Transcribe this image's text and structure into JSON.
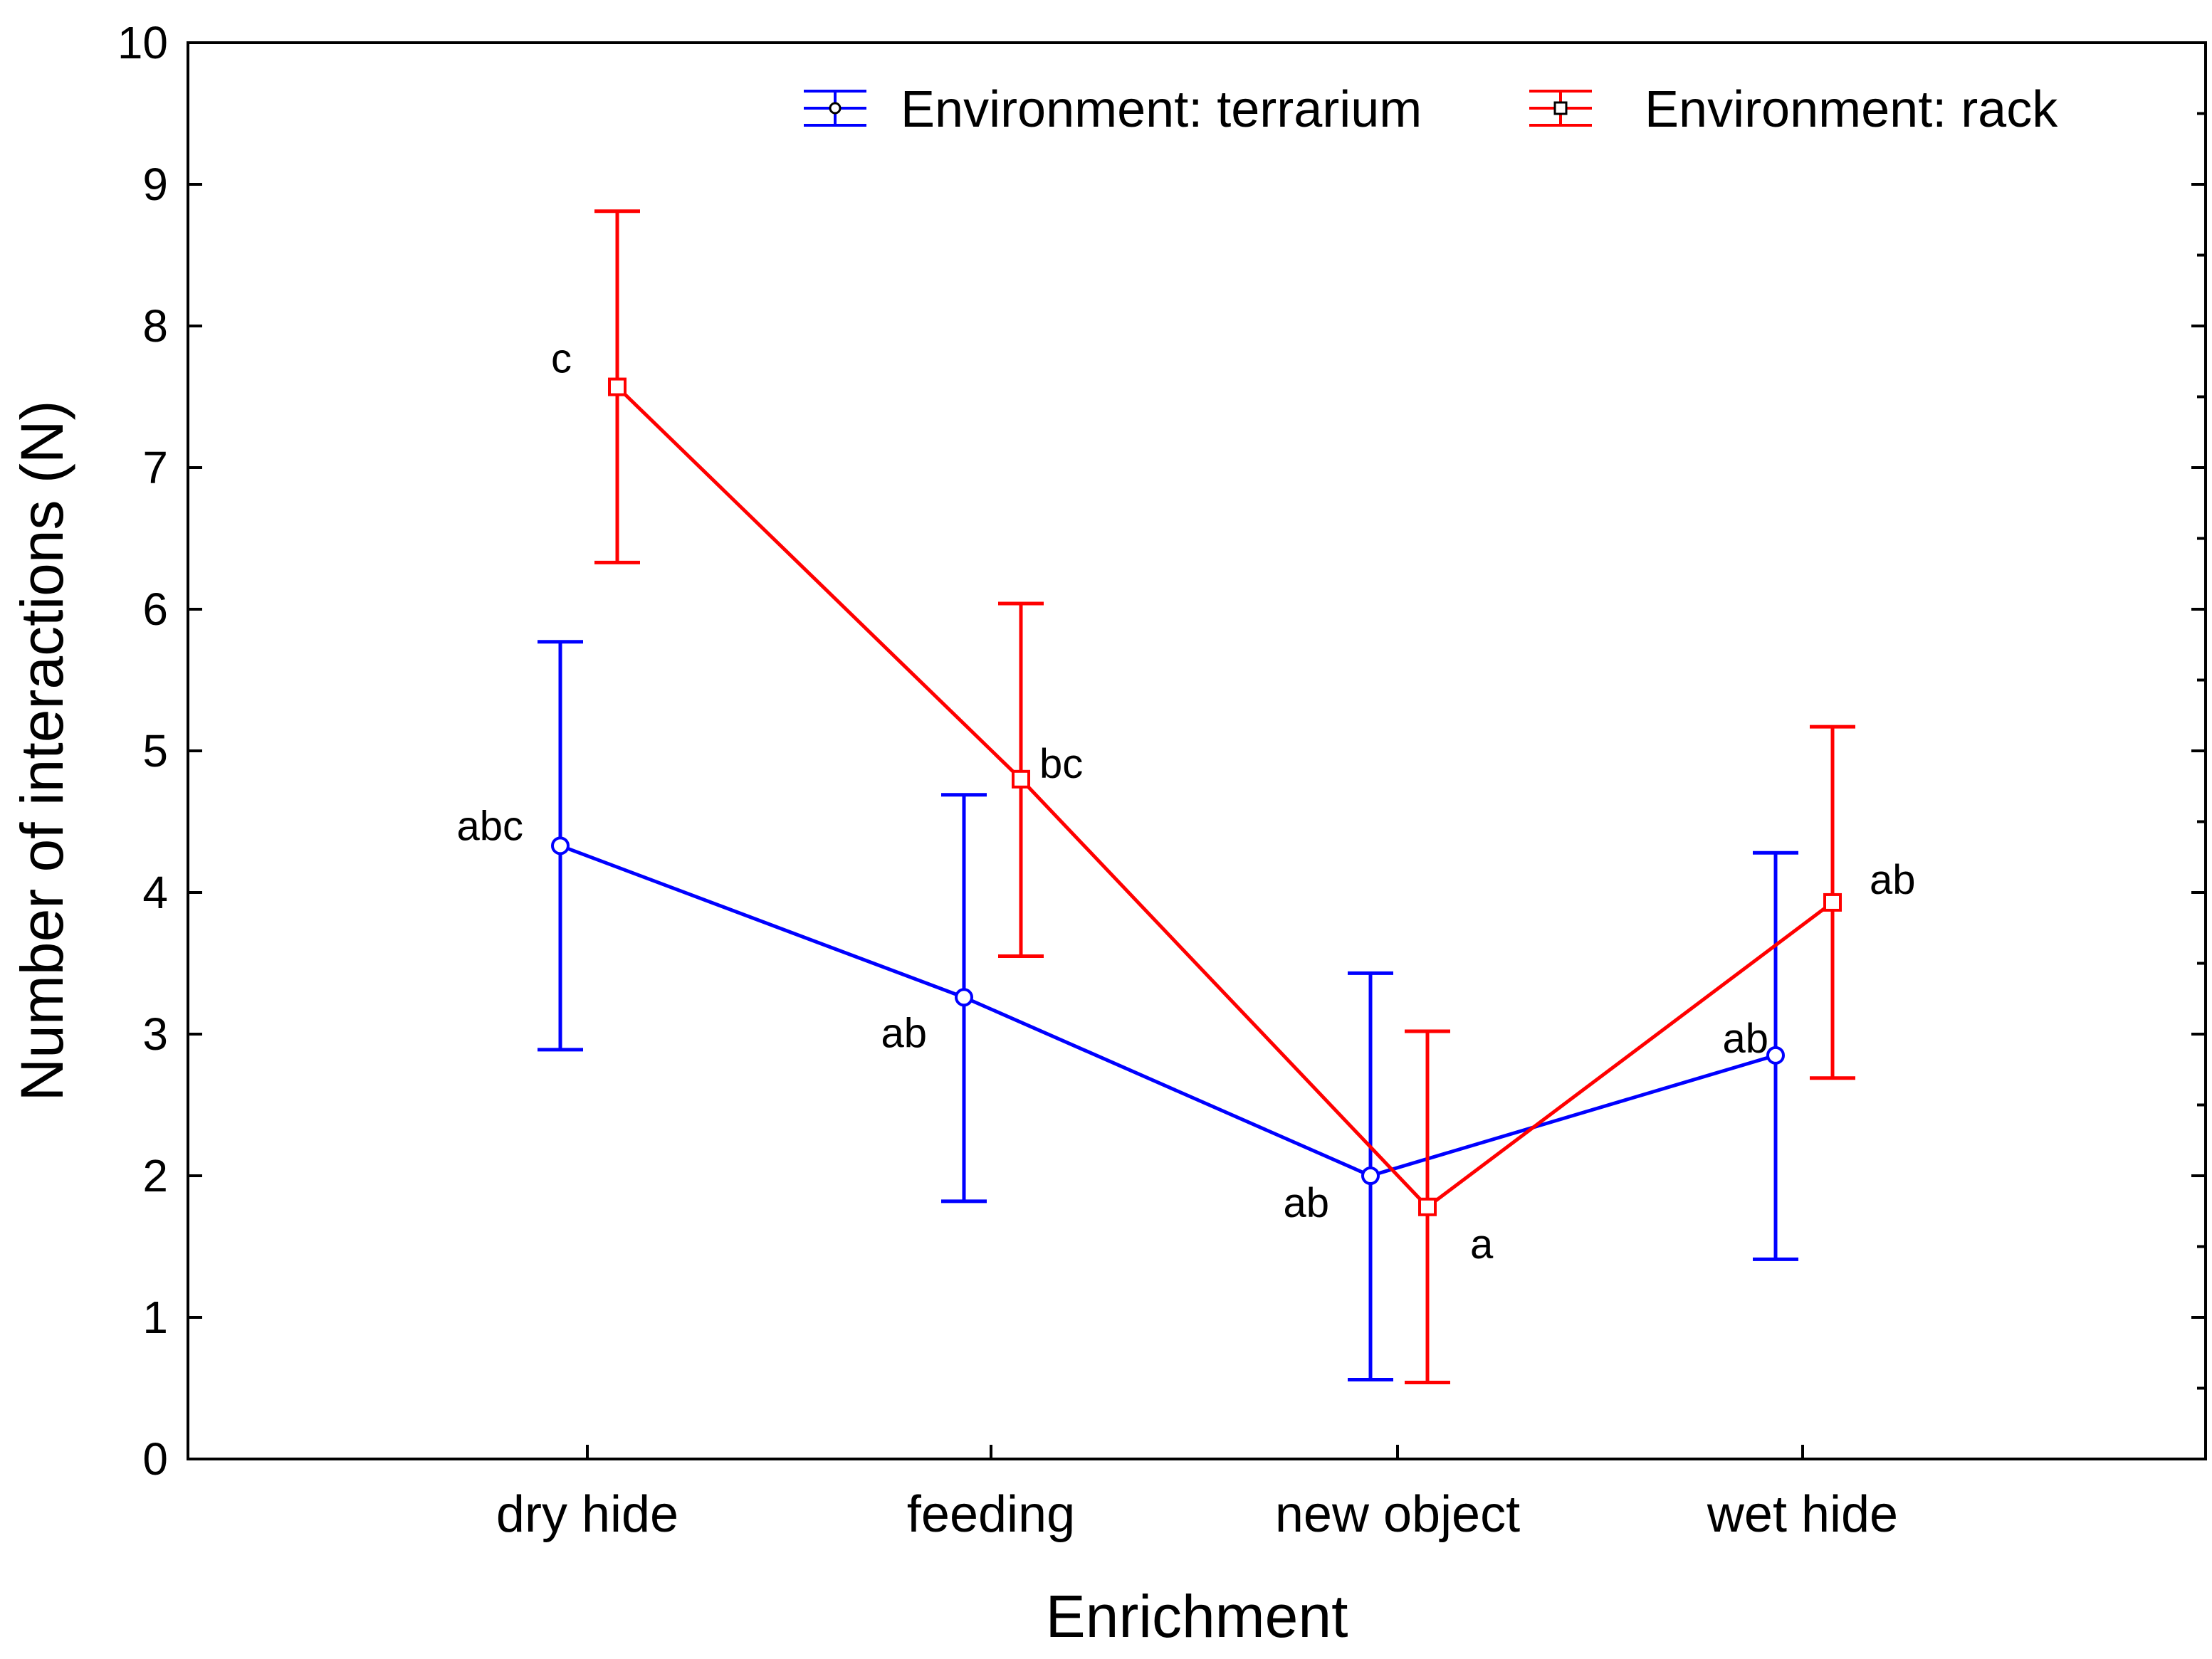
{
  "chart_data": {
    "type": "line",
    "xlabel": "Enrichment",
    "ylabel": "Number of interactions (N)",
    "ylim": [
      0,
      10
    ],
    "yticks": [
      "0",
      "1",
      "2",
      "3",
      "4",
      "5",
      "6",
      "7",
      "8",
      "9",
      "10"
    ],
    "categories": [
      "dry hide",
      "feeding",
      "new object",
      "wet hide"
    ],
    "legend_position": "top-right",
    "grid": false,
    "series": [
      {
        "name": "Environment: terrarium",
        "color": "#0000ff",
        "marker": "circle",
        "values": [
          4.33,
          3.26,
          2.0,
          2.85
        ],
        "lower": [
          2.89,
          1.82,
          0.56,
          1.41
        ],
        "upper": [
          5.77,
          4.69,
          3.43,
          4.28
        ],
        "labels": [
          "abc",
          "ab",
          "ab",
          "ab"
        ]
      },
      {
        "name": "Environment: rack",
        "color": "#ff0000",
        "marker": "square",
        "values": [
          7.57,
          4.8,
          1.78,
          3.93
        ],
        "lower": [
          6.33,
          3.55,
          0.54,
          2.69
        ],
        "upper": [
          8.81,
          6.04,
          3.02,
          5.17
        ],
        "labels": [
          "c",
          "bc",
          "a",
          "ab"
        ]
      }
    ]
  }
}
